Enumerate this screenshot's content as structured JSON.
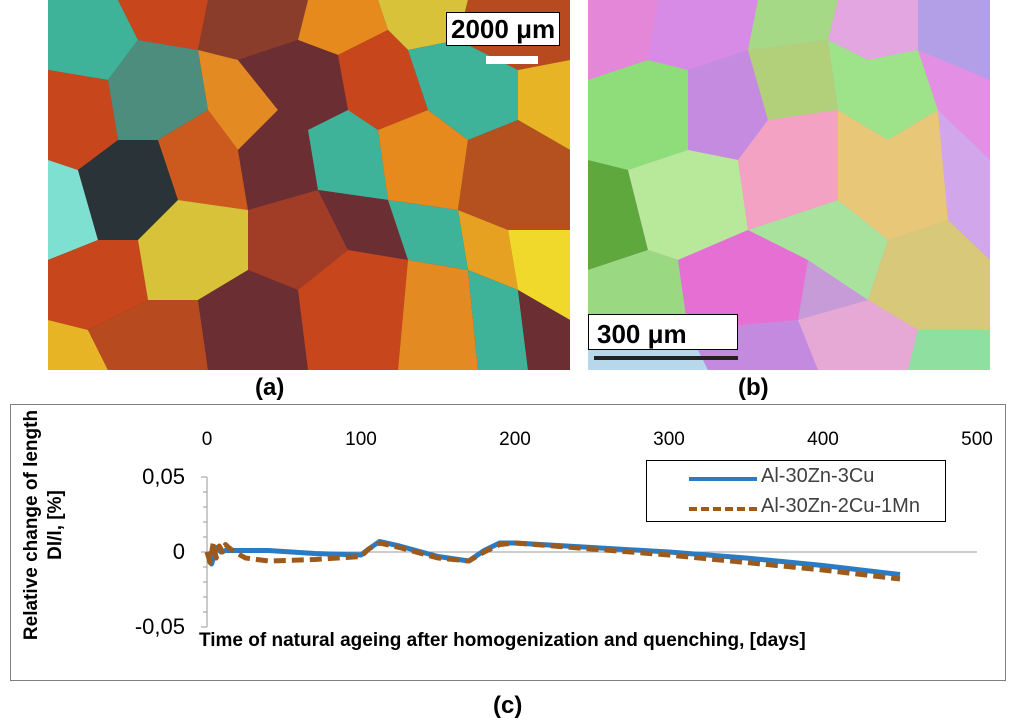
{
  "panels": {
    "a": {
      "label": "(a)",
      "scale_bar": "2000 μm"
    },
    "b": {
      "label": "(b)",
      "scale_bar": "300 μm"
    },
    "c": {
      "label": "(c)"
    }
  },
  "chart_data": {
    "type": "line",
    "xlabel": "Time of natural ageing after homogenization and quenching, [days]",
    "ylabel": "Relative change of length Dl/l, [%]",
    "xlim": [
      0,
      500
    ],
    "ylim": [
      -0.05,
      0.05
    ],
    "x_ticks": [
      "0",
      "100",
      "200",
      "300",
      "400",
      "500"
    ],
    "y_ticks": [
      "0,05",
      "0",
      "-0,05"
    ],
    "y_tick_values": [
      0.05,
      0,
      -0.05
    ],
    "x_tick_values": [
      0,
      100,
      200,
      300,
      400,
      500
    ],
    "x_axis_position": "top",
    "grid": false,
    "legend_position": "top-right",
    "series": [
      {
        "name": "Al-30Zn-3Cu",
        "color": "#2a7bc4",
        "style": "solid",
        "x": [
          0,
          3,
          6,
          9,
          12,
          20,
          40,
          70,
          100,
          105,
          112,
          125,
          150,
          170,
          180,
          190,
          200,
          250,
          300,
          350,
          400,
          450
        ],
        "y": [
          0.0,
          -0.008,
          0.003,
          0.0,
          0.001,
          0.001,
          0.001,
          -0.001,
          -0.002,
          0.002,
          0.007,
          0.004,
          -0.003,
          -0.006,
          0.001,
          0.006,
          0.006,
          0.003,
          0.0,
          -0.004,
          -0.009,
          -0.015
        ]
      },
      {
        "name": "Al-30Zn-2Cu-1Mn",
        "color": "#9c5a1c",
        "style": "dashed",
        "x": [
          0,
          2,
          4,
          6,
          8,
          10,
          12,
          14,
          18,
          25,
          40,
          70,
          100,
          105,
          112,
          125,
          150,
          170,
          180,
          190,
          200,
          250,
          300,
          350,
          400,
          450
        ],
        "y": [
          0.0,
          -0.007,
          0.006,
          -0.004,
          0.004,
          0.0,
          0.005,
          0.003,
          0.0,
          -0.004,
          -0.006,
          -0.005,
          -0.003,
          0.002,
          0.006,
          0.003,
          -0.004,
          -0.006,
          0.0,
          0.005,
          0.006,
          0.002,
          -0.002,
          -0.007,
          -0.012,
          -0.018
        ]
      }
    ]
  }
}
